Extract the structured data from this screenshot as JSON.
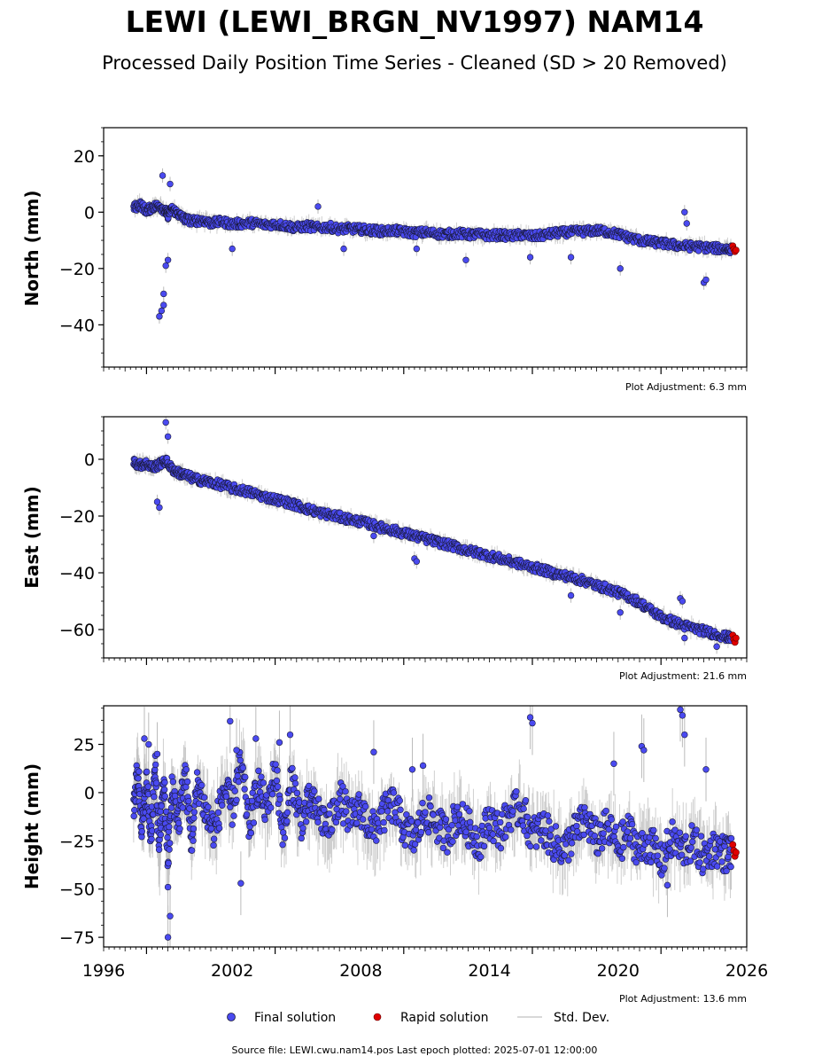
{
  "header": {
    "title": "LEWI (LEWI_BRGN_NV1997) NAM14",
    "subtitle": "Processed Daily Position Time Series - Cleaned (SD > 20 Removed)"
  },
  "legend": {
    "final_label": "Final solution",
    "rapid_label": "Rapid solution",
    "std_label": "Std. Dev."
  },
  "footer": {
    "source": "Source file: LEWI.cwu.nam14.pos  Last epoch plotted: 2025-07-01 12:00:00"
  },
  "colors": {
    "final": "#4a4af0",
    "rapid": "#e00000",
    "std_dev": "#bbbbbb",
    "marker_edge": "#1a1a3a"
  },
  "chart_data": [
    {
      "type": "scatter",
      "ylabel": "North (mm)",
      "plot_adjustment": "Plot Adjustment: 6.3 mm",
      "xlim": [
        1996,
        2026
      ],
      "ylim": [
        -55,
        30
      ],
      "yticks": [
        20,
        0,
        -20,
        -40
      ],
      "ytick_labels": [
        "20",
        "0",
        "−20",
        "−40"
      ],
      "series": [
        {
          "kind": "final",
          "x": [
            1997.4,
            1997.7,
            1998.0,
            1998.3,
            1998.6,
            1998.9,
            1999.0,
            1999.2,
            1999.5,
            1999.8,
            2000.2,
            2000.6,
            2001.0,
            2001.5,
            2002.0,
            2002.5,
            2003.0,
            2003.5,
            2004.0,
            2004.5,
            2005.0,
            2005.5,
            2006.0,
            2006.5,
            2007.0,
            2007.5,
            2008.0,
            2008.5,
            2009.0,
            2009.5,
            2010.0,
            2010.5,
            2011.0,
            2011.5,
            2012.0,
            2012.5,
            2013.0,
            2013.5,
            2014.0,
            2014.5,
            2015.0,
            2015.5,
            2016.0,
            2016.5,
            2017.0,
            2017.5,
            2018.0,
            2018.5,
            2019.0,
            2019.5,
            2020.0,
            2020.5,
            2021.0,
            2021.5,
            2022.0,
            2022.5,
            2023.0,
            2023.5,
            2024.0,
            2024.5,
            2025.0,
            2025.3
          ],
          "y": [
            1.5,
            2.8,
            0.5,
            1.9,
            2.4,
            0.2,
            -1.0,
            1.2,
            -0.8,
            -2.5,
            -3.2,
            -2.8,
            -3.9,
            -3.4,
            -4.2,
            -4.0,
            -3.8,
            -4.5,
            -4.2,
            -4.8,
            -5.5,
            -5.0,
            -5.6,
            -5.2,
            -6.0,
            -5.8,
            -6.1,
            -6.4,
            -6.8,
            -6.5,
            -7.0,
            -7.4,
            -7.2,
            -7.6,
            -7.8,
            -7.5,
            -8.0,
            -7.9,
            -8.3,
            -8.1,
            -8.5,
            -8.0,
            -8.6,
            -8.2,
            -7.5,
            -7.2,
            -7.0,
            -6.8,
            -6.5,
            -7.0,
            -7.8,
            -9.0,
            -10.0,
            -10.5,
            -11.0,
            -11.5,
            -12.0,
            -12.2,
            -12.5,
            -12.8,
            -13.0,
            -13.1
          ]
        },
        {
          "kind": "final_outliers",
          "x": [
            1998.6,
            1998.7,
            1998.8,
            1998.8,
            1998.9,
            1999.0,
            1998.75,
            1999.1,
            2006.0,
            2007.2,
            2010.6,
            2012.9,
            2015.9,
            2017.8,
            2020.1,
            2023.1,
            2023.2,
            2024.0,
            2024.1,
            2002.0
          ],
          "y": [
            -37,
            -35,
            -33,
            -29,
            -19,
            -17,
            13,
            10,
            2,
            -13,
            -13,
            -17,
            -16,
            -16,
            -20,
            0,
            -4,
            -25,
            -24,
            -13
          ]
        },
        {
          "kind": "rapid",
          "x": [
            2025.35,
            2025.4,
            2025.45,
            2025.5
          ],
          "y": [
            -12.0,
            -13.2,
            -14.0,
            -13.5
          ]
        }
      ]
    },
    {
      "type": "scatter",
      "ylabel": "East (mm)",
      "plot_adjustment": "Plot Adjustment: 21.6 mm",
      "xlim": [
        1996,
        2026
      ],
      "ylim": [
        -70,
        15
      ],
      "yticks": [
        0,
        -20,
        -40,
        -60
      ],
      "ytick_labels": [
        "0",
        "−20",
        "−40",
        "−60"
      ],
      "series": [
        {
          "kind": "final",
          "x": [
            1997.4,
            1997.7,
            1998.0,
            1998.3,
            1998.6,
            1998.9,
            1999.2,
            1999.5,
            1999.8,
            2000.2,
            2000.6,
            2001.0,
            2001.5,
            2002.0,
            2002.5,
            2003.0,
            2003.5,
            2004.0,
            2004.5,
            2005.0,
            2005.5,
            2006.0,
            2006.5,
            2007.0,
            2007.5,
            2008.0,
            2008.5,
            2009.0,
            2009.5,
            2010.0,
            2010.5,
            2011.0,
            2011.5,
            2012.0,
            2012.5,
            2013.0,
            2013.5,
            2014.0,
            2014.5,
            2015.0,
            2015.5,
            2016.0,
            2016.5,
            2017.0,
            2017.5,
            2018.0,
            2018.5,
            2019.0,
            2019.5,
            2020.0,
            2020.5,
            2021.0,
            2021.5,
            2022.0,
            2022.5,
            2023.0,
            2023.5,
            2024.0,
            2024.5,
            2025.0,
            2025.3
          ],
          "y": [
            -1.0,
            -2.0,
            -1.5,
            -2.8,
            -1.8,
            -0.5,
            -3.5,
            -4.8,
            -5.5,
            -6.8,
            -7.5,
            -8.2,
            -9.0,
            -10.2,
            -11.0,
            -12.0,
            -13.2,
            -14.1,
            -15.0,
            -16.2,
            -17.5,
            -18.6,
            -19.5,
            -20.3,
            -21.2,
            -22.0,
            -23.0,
            -24.1,
            -25.0,
            -26.0,
            -27.0,
            -28.0,
            -29.0,
            -30.0,
            -31.0,
            -32.2,
            -33.0,
            -34.0,
            -35.0,
            -36.0,
            -37.0,
            -38.0,
            -39.0,
            -40.2,
            -41.0,
            -42.0,
            -43.0,
            -44.5,
            -45.5,
            -47.0,
            -48.5,
            -50.5,
            -53.0,
            -55.5,
            -57.0,
            -58.5,
            -59.5,
            -60.5,
            -61.5,
            -62.5,
            -63.0
          ]
        },
        {
          "kind": "final_outliers",
          "x": [
            1998.9,
            1999.0,
            1998.5,
            1998.6,
            2010.5,
            2010.6,
            2017.8,
            2020.1,
            2022.9,
            2023.0,
            2023.1,
            2024.6,
            2008.6
          ],
          "y": [
            13,
            8,
            -15,
            -17,
            -35,
            -36,
            -48,
            -54,
            -49,
            -50,
            -63,
            -66,
            -27
          ]
        },
        {
          "kind": "rapid",
          "x": [
            2025.35,
            2025.4,
            2025.45,
            2025.5
          ],
          "y": [
            -62.0,
            -63.5,
            -64.5,
            -63.0
          ]
        }
      ]
    },
    {
      "type": "scatter",
      "ylabel": "Height (mm)",
      "plot_adjustment": "Plot Adjustment: 13.6 mm",
      "xlim": [
        1996,
        2026
      ],
      "ylim": [
        -80,
        45
      ],
      "yticks": [
        25,
        0,
        -25,
        -50,
        -75
      ],
      "ytick_labels": [
        "25",
        "0",
        "−25",
        "−50",
        "−75"
      ],
      "xticks": [
        1996,
        2002,
        2008,
        2014,
        2020,
        2026
      ],
      "xtick_labels": [
        "1996",
        "2002",
        "2008",
        "2014",
        "2020",
        "2026"
      ],
      "series": [
        {
          "kind": "final",
          "x": [
            1997.4,
            1997.6,
            1997.8,
            1998.0,
            1998.2,
            1998.4,
            1998.6,
            1998.8,
            1999.0,
            1999.2,
            1999.5,
            1999.8,
            2000.1,
            2000.4,
            2000.8,
            2001.2,
            2001.6,
            2002.0,
            2002.4,
            2002.8,
            2003.2,
            2003.6,
            2004.0,
            2004.4,
            2004.8,
            2005.2,
            2005.6,
            2006.0,
            2006.5,
            2007.0,
            2007.5,
            2008.0,
            2008.5,
            2009.0,
            2009.5,
            2010.0,
            2010.5,
            2011.0,
            2011.5,
            2012.0,
            2012.5,
            2013.0,
            2013.5,
            2014.0,
            2014.5,
            2015.0,
            2015.5,
            2016.0,
            2016.5,
            2017.0,
            2017.5,
            2018.0,
            2018.5,
            2019.0,
            2019.5,
            2020.0,
            2020.5,
            2021.0,
            2021.5,
            2022.0,
            2022.5,
            2023.0,
            2023.5,
            2024.0,
            2024.5,
            2025.0,
            2025.3
          ],
          "y": [
            -5,
            10,
            -18,
            5,
            -22,
            12,
            -28,
            8,
            -35,
            2,
            -15,
            10,
            -25,
            6,
            -12,
            -20,
            2,
            -8,
            15,
            -18,
            5,
            -10,
            12,
            -22,
            8,
            -15,
            -5,
            -10,
            -18,
            -2,
            -14,
            -8,
            -20,
            -12,
            -6,
            -18,
            -24,
            -10,
            -16,
            -22,
            -12,
            -18,
            -26,
            -14,
            -20,
            -10,
            -8,
            -22,
            -18,
            -26,
            -30,
            -20,
            -14,
            -24,
            -18,
            -28,
            -20,
            -30,
            -26,
            -36,
            -24,
            -30,
            -26,
            -34,
            -28,
            -32,
            -30
          ]
        },
        {
          "kind": "final_outliers",
          "x": [
            1997.9,
            1998.1,
            1998.5,
            1999.0,
            1999.1,
            1999.0,
            2001.9,
            2002.2,
            2003.1,
            2004.2,
            2004.7,
            2008.6,
            2010.4,
            2010.9,
            2015.9,
            2016.0,
            2019.8,
            2021.1,
            2021.2,
            2022.9,
            2023.0,
            2023.1,
            2024.1,
            2022.3,
            2002.4
          ],
          "y": [
            28,
            25,
            20,
            -75,
            -64,
            -49,
            37,
            22,
            28,
            26,
            30,
            21,
            12,
            14,
            39,
            36,
            15,
            24,
            22,
            43,
            40,
            30,
            12,
            -48,
            -47
          ]
        },
        {
          "kind": "rapid",
          "x": [
            2025.35,
            2025.4,
            2025.45,
            2025.5
          ],
          "y": [
            -27.0,
            -30.0,
            -33.0,
            -31.0
          ]
        }
      ]
    }
  ]
}
